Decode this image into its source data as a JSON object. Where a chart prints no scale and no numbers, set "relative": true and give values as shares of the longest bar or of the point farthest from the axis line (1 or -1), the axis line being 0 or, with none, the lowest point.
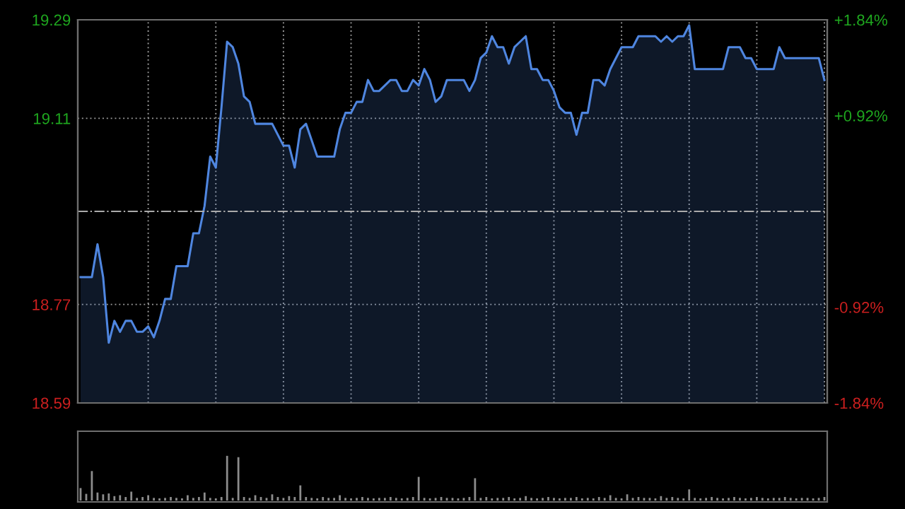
{
  "chart_data": [
    {
      "type": "area",
      "categories": [
        null,
        null,
        null,
        null,
        null,
        null,
        null,
        null,
        null,
        null,
        null,
        null,
        null,
        null,
        null,
        null,
        null,
        null,
        null,
        null,
        null,
        null,
        null,
        null,
        null,
        null,
        null,
        null,
        null,
        null,
        null,
        null,
        null,
        null,
        null,
        null,
        null,
        null,
        null,
        null,
        null,
        null,
        null,
        null,
        null,
        null,
        null,
        null,
        null,
        null,
        null,
        null,
        null,
        null,
        null,
        null,
        null,
        null,
        null,
        null,
        null,
        null,
        null,
        null,
        null,
        null,
        null,
        null,
        null,
        null,
        null,
        null,
        null,
        null,
        null,
        null,
        null,
        null,
        null,
        null,
        null,
        null,
        null,
        null,
        null,
        null,
        null,
        null,
        null,
        null,
        null,
        null,
        null,
        null,
        null,
        null,
        null,
        null,
        null,
        null,
        null,
        null,
        null,
        null,
        null,
        null,
        null,
        null,
        null,
        null,
        null,
        null,
        null,
        null,
        null,
        null,
        null,
        null,
        null,
        null,
        null,
        null,
        null,
        null,
        null,
        null,
        null,
        null,
        null,
        null,
        null,
        null,
        null
      ],
      "series": [
        {
          "color": "#4f86e0",
          "values": [
            18.82,
            18.82,
            18.82,
            18.88,
            18.82,
            18.7,
            18.74,
            18.72,
            18.74,
            18.74,
            18.72,
            18.72,
            18.73,
            18.71,
            18.74,
            18.78,
            18.78,
            18.84,
            18.84,
            18.84,
            18.9,
            18.9,
            18.95,
            19.04,
            19.02,
            19.13,
            19.25,
            19.24,
            19.21,
            19.15,
            19.14,
            19.1,
            19.1,
            19.1,
            19.1,
            19.08,
            19.06,
            19.06,
            19.02,
            19.09,
            19.1,
            19.07,
            19.04,
            19.04,
            19.04,
            19.04,
            19.09,
            19.12,
            19.12,
            19.14,
            19.14,
            19.18,
            19.16,
            19.16,
            19.17,
            19.18,
            19.18,
            19.16,
            19.16,
            19.18,
            19.17,
            19.2,
            19.18,
            19.14,
            19.15,
            19.18,
            19.18,
            19.18,
            19.18,
            19.16,
            19.18,
            19.22,
            19.23,
            19.26,
            19.24,
            19.24,
            19.21,
            19.24,
            19.25,
            19.26,
            19.2,
            19.2,
            19.18,
            19.18,
            19.16,
            19.13,
            19.12,
            19.12,
            19.08,
            19.12,
            19.12,
            19.18,
            19.18,
            19.17,
            19.2,
            19.22,
            19.24,
            19.24,
            19.24,
            19.26,
            19.26,
            19.26,
            19.26,
            19.25,
            19.26,
            19.25,
            19.26,
            19.26,
            19.28,
            19.2,
            19.2,
            19.2,
            19.2,
            19.2,
            19.2,
            19.24,
            19.24,
            19.24,
            19.22,
            19.22,
            19.2,
            19.2,
            19.2,
            19.2,
            19.24,
            19.22,
            19.22,
            19.22,
            19.22,
            19.22,
            19.22,
            19.22,
            19.18
          ]
        }
      ],
      "ylim": [
        18.59,
        19.29
      ],
      "yticks": [
        18.59,
        18.77,
        19.11,
        19.29
      ],
      "y2lim": [
        -1.84,
        1.84
      ],
      "y2ticks": [
        {
          "value": -1.84,
          "label": "-1.84%"
        },
        {
          "value": -0.92,
          "label": "-0.92%"
        },
        {
          "value": 0.92,
          "label": "+0.92%"
        },
        {
          "value": 1.84,
          "label": "+1.84%"
        }
      ],
      "ref_lines": [
        {
          "axis": "y",
          "value": 18.94,
          "line_style": "dashdot",
          "color": "#aaaaaa"
        }
      ],
      "grid": true
    },
    {
      "type": "bar",
      "relative": true,
      "categories": [
        null,
        null,
        null,
        null,
        null,
        null,
        null,
        null,
        null,
        null,
        null,
        null,
        null,
        null,
        null,
        null,
        null,
        null,
        null,
        null,
        null,
        null,
        null,
        null,
        null,
        null,
        null,
        null,
        null,
        null,
        null,
        null,
        null,
        null,
        null,
        null,
        null,
        null,
        null,
        null,
        null,
        null,
        null,
        null,
        null,
        null,
        null,
        null,
        null,
        null,
        null,
        null,
        null,
        null,
        null,
        null,
        null,
        null,
        null,
        null,
        null,
        null,
        null,
        null,
        null,
        null,
        null,
        null,
        null,
        null,
        null,
        null,
        null,
        null,
        null,
        null,
        null,
        null,
        null,
        null,
        null,
        null,
        null,
        null,
        null,
        null,
        null,
        null,
        null,
        null,
        null,
        null,
        null,
        null,
        null,
        null,
        null,
        null,
        null,
        null,
        null,
        null,
        null,
        null,
        null,
        null,
        null,
        null,
        null,
        null,
        null,
        null,
        null,
        null,
        null,
        null,
        null,
        null,
        null,
        null,
        null,
        null,
        null,
        null,
        null,
        null,
        null,
        null,
        null,
        null,
        null,
        null,
        null
      ],
      "series": [
        {
          "color": "#8c8c8c",
          "values": [
            0.28,
            0.15,
            0.66,
            0.18,
            0.14,
            0.16,
            0.1,
            0.12,
            0.08,
            0.2,
            0.06,
            0.08,
            0.12,
            0.06,
            0.05,
            0.06,
            0.08,
            0.06,
            0.05,
            0.12,
            0.06,
            0.08,
            0.18,
            0.06,
            0.05,
            0.08,
            1.0,
            0.06,
            0.97,
            0.08,
            0.06,
            0.12,
            0.08,
            0.06,
            0.14,
            0.08,
            0.06,
            0.1,
            0.08,
            0.34,
            0.08,
            0.06,
            0.05,
            0.08,
            0.06,
            0.06,
            0.12,
            0.06,
            0.05,
            0.06,
            0.08,
            0.06,
            0.05,
            0.06,
            0.06,
            0.08,
            0.06,
            0.05,
            0.06,
            0.08,
            0.53,
            0.06,
            0.05,
            0.06,
            0.08,
            0.06,
            0.06,
            0.05,
            0.06,
            0.08,
            0.5,
            0.06,
            0.08,
            0.05,
            0.06,
            0.06,
            0.08,
            0.05,
            0.06,
            0.1,
            0.06,
            0.05,
            0.06,
            0.08,
            0.06,
            0.05,
            0.06,
            0.06,
            0.08,
            0.05,
            0.06,
            0.05,
            0.08,
            0.06,
            0.12,
            0.06,
            0.05,
            0.14,
            0.06,
            0.08,
            0.06,
            0.06,
            0.05,
            0.1,
            0.06,
            0.08,
            0.06,
            0.05,
            0.25,
            0.06,
            0.05,
            0.06,
            0.08,
            0.06,
            0.05,
            0.06,
            0.08,
            0.06,
            0.05,
            0.06,
            0.08,
            0.06,
            0.05,
            0.06,
            0.06,
            0.08,
            0.06,
            0.05,
            0.06,
            0.06,
            0.05,
            0.06,
            0.08
          ]
        }
      ],
      "grid": false
    }
  ]
}
